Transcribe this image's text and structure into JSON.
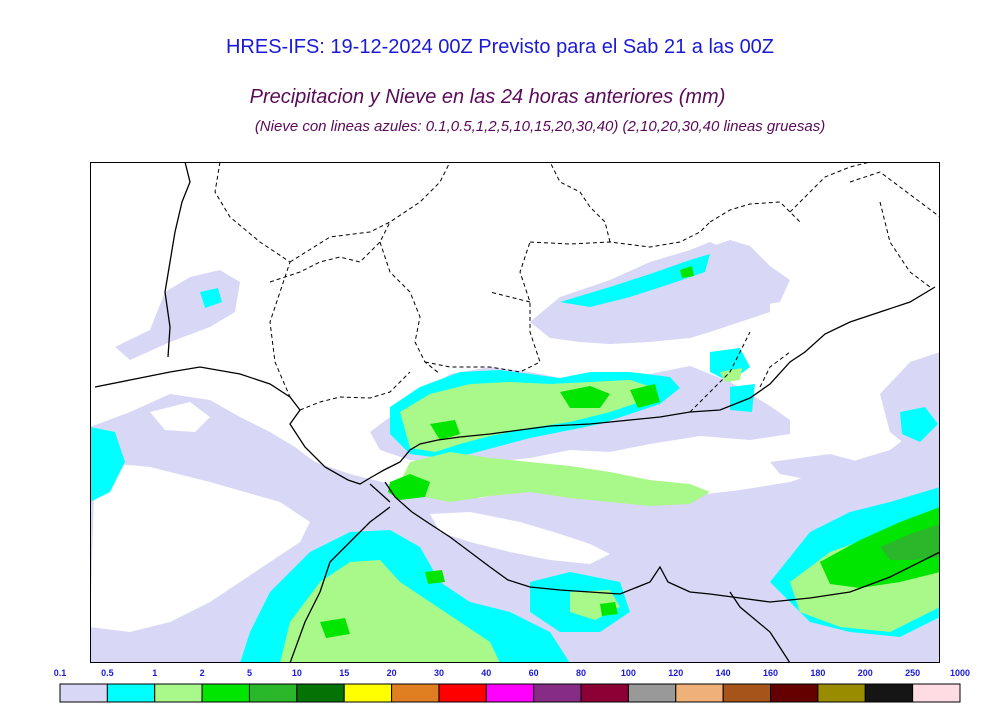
{
  "header": {
    "title": "HRES-IFS: 19-12-2024 00Z Previsto para el Sab 21 a las 00Z",
    "subtitle": "Precipitacion y Nieve en las 24 horas anteriores (mm)",
    "note": "(Nieve con lineas azules: 0.1,0.5,1,2,5,10,15,20,30,40)  (2,10,20,30,40 lineas gruesas)"
  },
  "map": {
    "region": "Southeastern Spain and Alboran Sea",
    "border_color": "#000000",
    "background_color": "#ffffff"
  },
  "legend": {
    "ticks": [
      "0.1",
      "0.5",
      "1",
      "2",
      "5",
      "10",
      "15",
      "20",
      "30",
      "40",
      "60",
      "80",
      "100",
      "120",
      "140",
      "160",
      "180",
      "200",
      "250",
      "1000"
    ],
    "colors": [
      "#d8d8f6",
      "#00ffff",
      "#a9f98a",
      "#00e600",
      "#2ab82a",
      "#057205",
      "#ffff00",
      "#e07f21",
      "#ff0000",
      "#ff00ff",
      "#862c86",
      "#8c0036",
      "#999999",
      "#f0b07a",
      "#a7541a",
      "#640000",
      "#9a8c00",
      "#151515",
      "#ffdbe3"
    ]
  }
}
